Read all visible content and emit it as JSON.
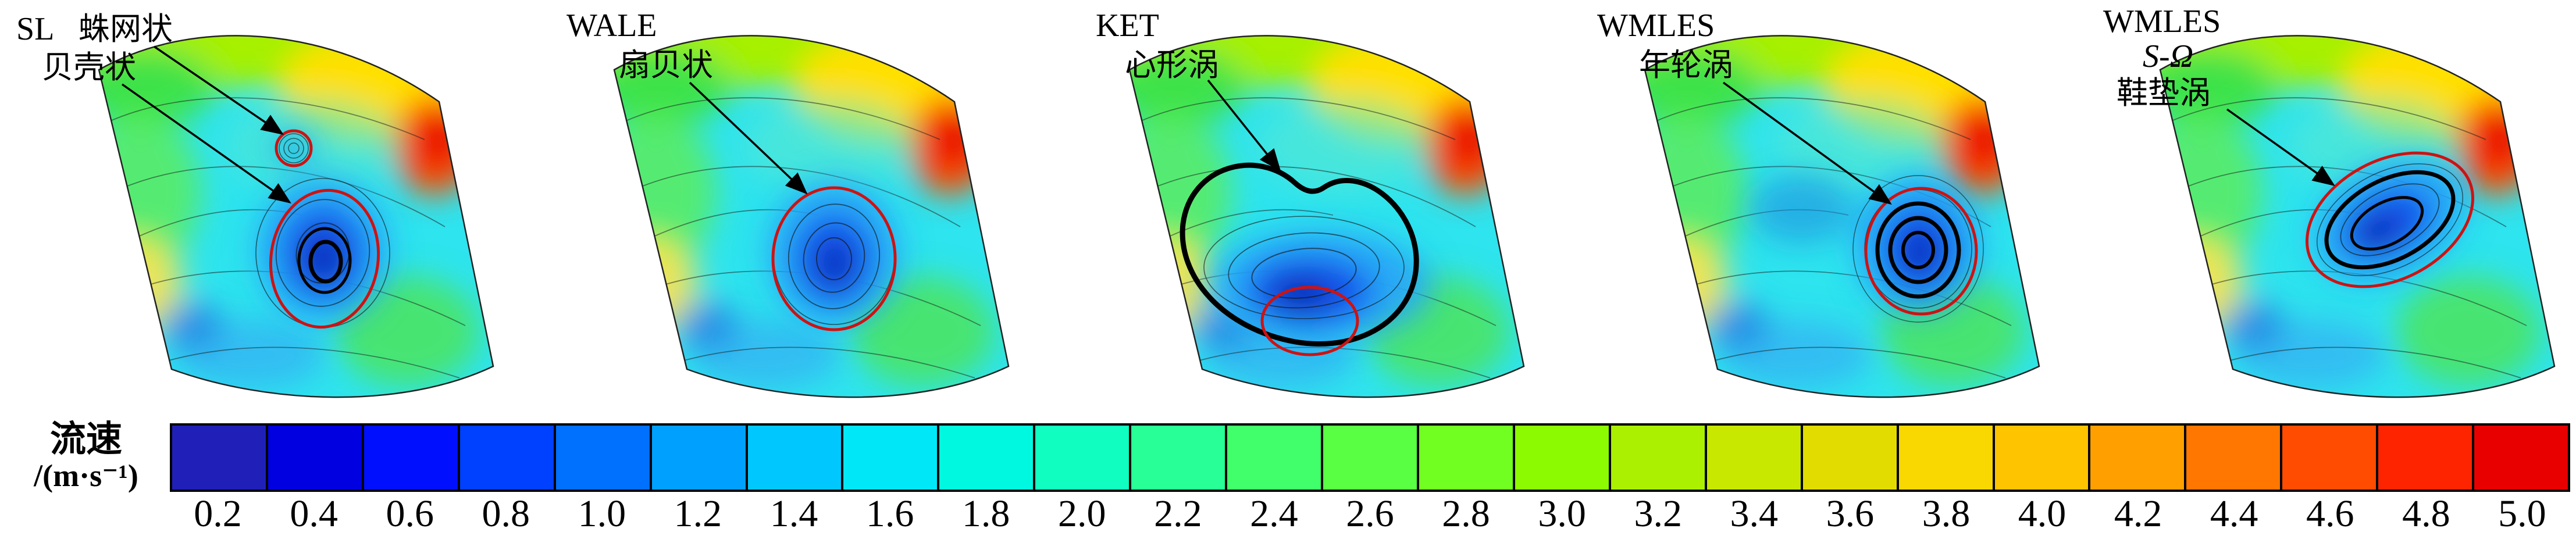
{
  "figure": {
    "panels": [
      {
        "model": "SL",
        "annotations": [
          "蛛网状",
          "贝壳状"
        ]
      },
      {
        "model": "WALE",
        "annotations": [
          "扇贝状"
        ]
      },
      {
        "model": "KET",
        "annotations": [
          "心形涡"
        ]
      },
      {
        "model": "WMLES",
        "annotations": [
          "年轮涡"
        ]
      },
      {
        "model": "WMLES",
        "model_sub": "S-Ω",
        "annotations": [
          "鞋垫涡"
        ]
      }
    ],
    "colorbar": {
      "label": "流速",
      "unit": "/(m·s⁻¹)",
      "ticks": [
        "0.2",
        "0.4",
        "0.6",
        "0.8",
        "1.0",
        "1.2",
        "1.4",
        "1.6",
        "1.8",
        "2.0",
        "2.2",
        "2.4",
        "2.6",
        "2.8",
        "3.0",
        "3.2",
        "3.4",
        "3.6",
        "3.8",
        "4.0",
        "4.2",
        "4.4",
        "4.6",
        "4.8",
        "5.0"
      ],
      "colors": [
        "#2020B8",
        "#0000E0",
        "#0010FF",
        "#0040FF",
        "#0070FF",
        "#00A0FF",
        "#00C8FF",
        "#00E8F8",
        "#00F8E0",
        "#10FFC0",
        "#28FF96",
        "#40FF6A",
        "#58FF42",
        "#70FF20",
        "#8CFA00",
        "#AAF000",
        "#C8E800",
        "#E2DC00",
        "#F8D800",
        "#FFC400",
        "#FFA000",
        "#FF7600",
        "#FF4C00",
        "#FF2400",
        "#E80000"
      ],
      "annotation_red": "#CE1212"
    }
  },
  "chart_data": {
    "type": "heatmap",
    "title": "",
    "description": "Five velocity-contour fan-shaped flow-field panels with streamlines comparing turbulence models; vortex structures annotated in Chinese.",
    "panels": [
      {
        "model": "SL",
        "vortex_annotations": [
          "蛛网状",
          "贝壳状"
        ]
      },
      {
        "model": "WALE",
        "vortex_annotations": [
          "扇贝状"
        ]
      },
      {
        "model": "KET",
        "vortex_annotations": [
          "心形涡"
        ]
      },
      {
        "model": "WMLES",
        "vortex_annotations": [
          "年轮涡"
        ]
      },
      {
        "model": "WMLES S-Ω",
        "vortex_annotations": [
          "鞋垫涡"
        ]
      }
    ],
    "colorbar": {
      "label": "流速/(m·s⁻¹)",
      "min": 0.2,
      "max": 5.0,
      "step": 0.2,
      "ticks": [
        0.2,
        0.4,
        0.6,
        0.8,
        1.0,
        1.2,
        1.4,
        1.6,
        1.8,
        2.0,
        2.2,
        2.4,
        2.6,
        2.8,
        3.0,
        3.2,
        3.4,
        3.6,
        3.8,
        4.0,
        4.2,
        4.4,
        4.6,
        4.8,
        5.0
      ],
      "palette": "rainbow-jet",
      "orientation": "horizontal",
      "position": "bottom"
    },
    "grid": false
  }
}
